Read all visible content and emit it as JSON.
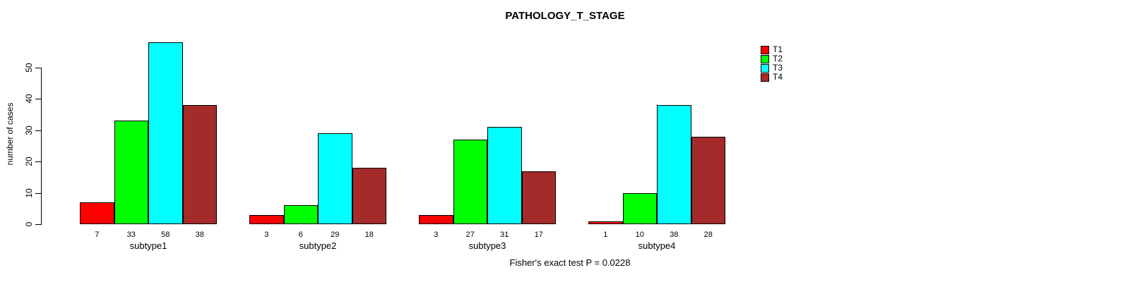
{
  "title": "PATHOLOGY_T_STAGE",
  "footnote": "Fisher's exact test P = 0.0228",
  "colors": {
    "t1": "#FF0000",
    "t2": "#00FF00",
    "t3": "#00FFFF",
    "t4": "#A52A2A",
    "axis": "#000000",
    "text": "#000000",
    "background": "#FFFFFF"
  },
  "legend": {
    "position": "top-right",
    "items": [
      {
        "label": "T1",
        "color": "#FF0000"
      },
      {
        "label": "T2",
        "color": "#00FF00"
      },
      {
        "label": "T3",
        "color": "#00FFFF"
      },
      {
        "label": "T4",
        "color": "#A52A2A"
      }
    ]
  },
  "chart_data": {
    "type": "bar",
    "grouped": true,
    "title": "PATHOLOGY_T_STAGE",
    "xlabel": "",
    "ylabel": "number of cases",
    "categories": [
      "subtype1",
      "subtype2",
      "subtype3",
      "subtype4"
    ],
    "series": [
      {
        "name": "T1",
        "color": "#FF0000",
        "values": [
          7,
          3,
          3,
          1
        ]
      },
      {
        "name": "T2",
        "color": "#00FF00",
        "values": [
          33,
          6,
          27,
          10
        ]
      },
      {
        "name": "T3",
        "color": "#00FFFF",
        "values": [
          58,
          29,
          31,
          38
        ]
      },
      {
        "name": "T4",
        "color": "#A52A2A",
        "values": [
          38,
          18,
          17,
          28
        ]
      }
    ],
    "bar_value_labels_shown": true,
    "yticks": [
      0,
      10,
      20,
      30,
      40,
      50
    ],
    "ylim": [
      0,
      58
    ],
    "grid": false,
    "legend_position": "top-right",
    "annotation": "Fisher's exact test P = 0.0228"
  }
}
